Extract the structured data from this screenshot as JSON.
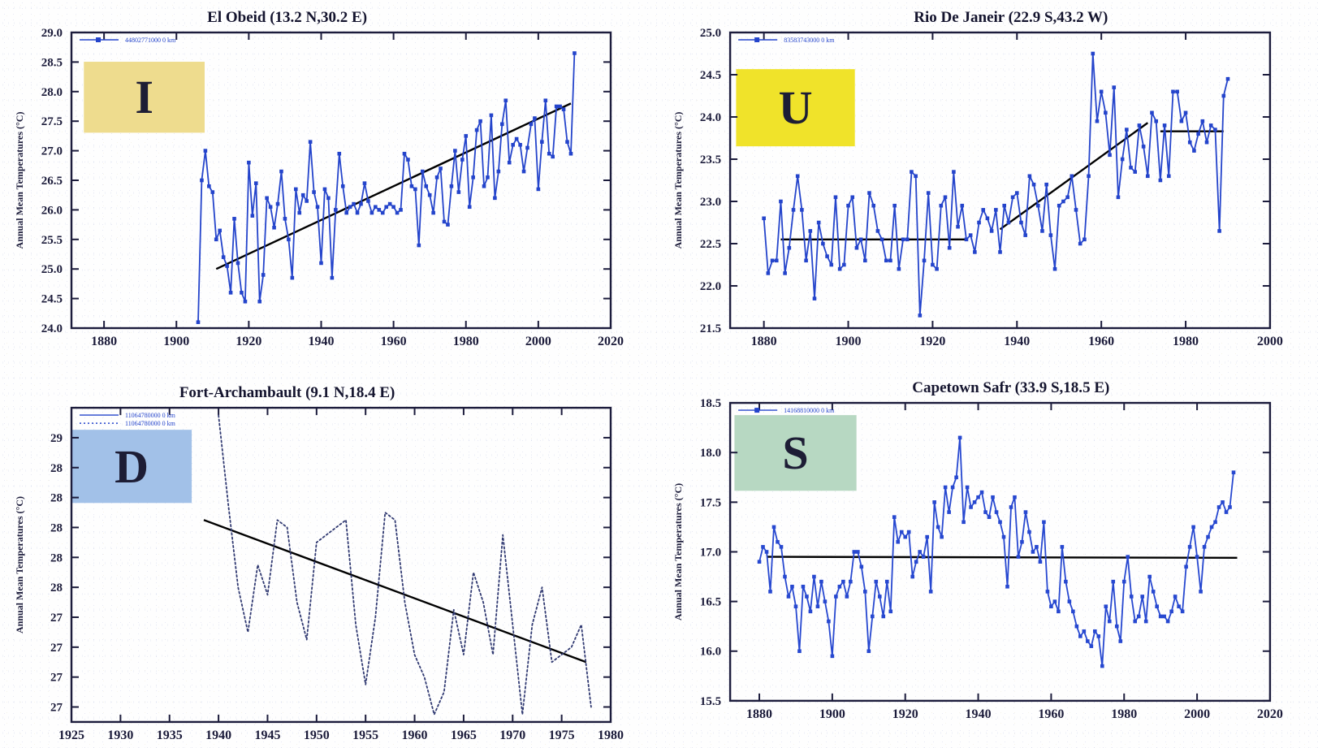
{
  "figure": {
    "description_visible_text_only": true,
    "y_axis_label": "Annual Mean Temperatures (°C)"
  },
  "chart_data": [
    {
      "type": "line",
      "title": "El Obeid (13.2 N,30.2 E)",
      "title_fx": 0.4,
      "ylabel": "Annual Mean Temperatures (°C)",
      "legend": [
        {
          "label": "44802771000  0 km",
          "dotted": false,
          "marker": true
        }
      ],
      "overlay": {
        "letter": "I",
        "color": "#eedc8e",
        "fx": 0.023,
        "fy": 0.099,
        "fw": 0.224,
        "fh": 0.24
      },
      "x_range": [
        1871,
        2020
      ],
      "y_range": [
        24.0,
        29.0
      ],
      "x_ticks": [
        1880,
        1900,
        1920,
        1940,
        1960,
        1980,
        2000,
        2020
      ],
      "y_ticks": [
        29.0,
        28.5,
        28.0,
        27.5,
        27.0,
        26.5,
        26.0,
        25.5,
        25.0,
        24.5,
        24.0
      ],
      "y_tick_labels": [
        "29.0",
        "28.5",
        "28.0",
        "27.5",
        "27.0",
        "26.5",
        "26.0",
        "25.5",
        "25.0",
        "24.5",
        "24.0"
      ],
      "series_color": "#2444cb",
      "line_style": "solid",
      "markers": true,
      "x_start": 1906,
      "values": [
        24.1,
        26.5,
        27.0,
        26.4,
        26.3,
        25.5,
        25.65,
        25.2,
        25.05,
        24.6,
        25.85,
        25.1,
        24.6,
        24.45,
        26.8,
        25.9,
        26.45,
        24.45,
        24.9,
        26.2,
        26.05,
        25.7,
        26.1,
        26.65,
        25.85,
        25.5,
        24.85,
        26.35,
        25.95,
        26.25,
        26.15,
        27.15,
        26.3,
        26.05,
        25.1,
        26.35,
        26.2,
        24.85,
        26.0,
        26.95,
        26.4,
        25.95,
        26.05,
        26.1,
        25.95,
        26.1,
        26.45,
        26.15,
        25.95,
        26.05,
        26.0,
        25.95,
        26.05,
        26.1,
        26.05,
        25.95,
        26.0,
        26.95,
        26.85,
        26.4,
        26.35,
        25.4,
        26.65,
        26.4,
        26.25,
        25.95,
        26.55,
        26.7,
        25.8,
        25.75,
        26.4,
        27.0,
        26.3,
        26.85,
        27.25,
        26.05,
        26.55,
        27.35,
        27.5,
        26.4,
        26.55,
        27.6,
        26.2,
        26.65,
        27.45,
        27.85,
        26.8,
        27.1,
        27.2,
        27.1,
        26.65,
        27.05,
        27.45,
        27.55,
        26.35,
        27.15,
        27.85,
        26.95,
        26.9,
        27.75,
        27.75,
        27.7,
        27.15,
        26.95,
        28.65
      ],
      "trend_color": "#000000",
      "trend_segments": [
        [
          1911,
          25.0,
          2009,
          27.8
        ]
      ]
    },
    {
      "type": "line",
      "title": "Rio De Janeir (22.9 S,43.2 W)",
      "title_fx": 0.52,
      "ylabel": "Annual Mean Temperatures (°C)",
      "legend": [
        {
          "label": "83583743000  0 km",
          "dotted": false,
          "marker": true
        }
      ],
      "overlay": {
        "letter": "U",
        "color": "#f0e32a",
        "fx": 0.011,
        "fy": 0.124,
        "fw": 0.22,
        "fh": 0.261
      },
      "x_range": [
        1872,
        2000
      ],
      "y_range": [
        21.5,
        25.0
      ],
      "x_ticks": [
        1880,
        1900,
        1920,
        1940,
        1960,
        1980,
        2000
      ],
      "y_ticks": [
        25.0,
        24.5,
        24.0,
        23.5,
        23.0,
        22.5,
        22.0,
        21.5
      ],
      "y_tick_labels": [
        "25.0",
        "24.5",
        "24.0",
        "23.5",
        "23.0",
        "22.5",
        "22.0",
        "21.5"
      ],
      "series_color": "#2444cb",
      "line_style": "solid",
      "markers": true,
      "x_start": 1880,
      "values": [
        22.8,
        22.15,
        22.3,
        22.3,
        23.0,
        22.15,
        22.45,
        22.9,
        23.3,
        22.9,
        22.3,
        22.65,
        21.85,
        22.75,
        22.5,
        22.35,
        22.25,
        23.05,
        22.2,
        22.25,
        22.95,
        23.05,
        22.45,
        22.55,
        22.3,
        23.1,
        22.95,
        22.65,
        22.55,
        22.3,
        22.3,
        22.95,
        22.2,
        22.55,
        22.55,
        23.35,
        23.3,
        21.65,
        22.3,
        23.1,
        22.25,
        22.2,
        22.95,
        23.05,
        22.45,
        23.35,
        22.7,
        22.95,
        22.55,
        22.6,
        22.4,
        22.75,
        22.9,
        22.8,
        22.65,
        22.9,
        22.4,
        22.95,
        22.75,
        23.05,
        23.1,
        22.75,
        22.6,
        23.3,
        23.2,
        22.95,
        22.65,
        23.2,
        22.6,
        22.2,
        22.95,
        23.0,
        23.05,
        23.3,
        22.9,
        22.5,
        22.55,
        23.3,
        24.75,
        23.95,
        24.3,
        24.05,
        23.55,
        24.35,
        23.05,
        23.5,
        23.85,
        23.4,
        23.35,
        23.9,
        23.65,
        23.3,
        24.05,
        23.95,
        23.25,
        23.9,
        23.3,
        24.3,
        24.3,
        23.95,
        24.05,
        23.7,
        23.6,
        23.8,
        23.95,
        23.7,
        23.9,
        23.85,
        22.65,
        24.25,
        24.45
      ],
      "trend_color": "#000000",
      "trend_segments": [
        [
          1884,
          22.55,
          1928,
          22.55
        ],
        [
          1936,
          22.67,
          1971,
          23.93
        ],
        [
          1974,
          23.83,
          1989,
          23.83
        ]
      ]
    },
    {
      "type": "line",
      "title": "Fort-Archambault (9.1 N,18.4 E)",
      "title_fx": 0.4,
      "ylabel": "Annual Mean Temperatures (°C)",
      "legend": [
        {
          "label": "11064780000  0 km",
          "dotted": false,
          "marker": false
        },
        {
          "label": "11064780000  0 km",
          "dotted": true,
          "marker": false
        }
      ],
      "overlay": {
        "letter": "D",
        "color": "#a2c1e8",
        "fx": 0.0,
        "fy": 0.07,
        "fw": 0.223,
        "fh": 0.233
      },
      "x_range": [
        1925,
        1980
      ],
      "y_range": [
        27.1,
        29.2
      ],
      "x_ticks": [
        1925,
        1930,
        1935,
        1940,
        1945,
        1950,
        1955,
        1960,
        1965,
        1970,
        1975,
        1980
      ],
      "y_ticks": [
        29.0,
        28.8,
        28.6,
        28.4,
        28.2,
        28.0,
        27.8,
        27.6,
        27.4,
        27.2
      ],
      "y_tick_labels": [
        "29",
        "28",
        "28",
        "28",
        "28",
        "28",
        "27",
        "27",
        "27",
        "27"
      ],
      "series_color": "#313a72",
      "line_style": "dotted",
      "markers": false,
      "x_start": 1940,
      "values": [
        29.15,
        28.55,
        28.0,
        27.7,
        28.15,
        27.95,
        28.45,
        28.4,
        27.9,
        27.65,
        28.3,
        28.35,
        28.4,
        28.45,
        27.75,
        27.35,
        27.8,
        28.5,
        28.45,
        27.9,
        27.55,
        27.4,
        27.15,
        27.3,
        27.85,
        27.55,
        28.1,
        27.9,
        27.55,
        28.35,
        27.75,
        27.15,
        27.75,
        28.0,
        27.5,
        27.55,
        27.6,
        27.75,
        27.2
      ],
      "trend_color": "#000000",
      "trend_segments": [
        [
          1938.5,
          28.45,
          1977.5,
          27.5
        ]
      ]
    },
    {
      "type": "line",
      "title": "Capetown Safr (33.9 S,18.5 E)",
      "title_fx": 0.52,
      "ylabel": "Annual Mean Temperatures (°C)",
      "legend": [
        {
          "label": "14168810000  0 km",
          "dotted": false,
          "marker": true
        }
      ],
      "overlay": {
        "letter": "S",
        "color": "#b7d8c2",
        "fx": 0.008,
        "fy": 0.041,
        "fw": 0.226,
        "fh": 0.254
      },
      "x_range": [
        1872,
        2020
      ],
      "y_range": [
        15.5,
        18.5
      ],
      "x_ticks": [
        1880,
        1900,
        1920,
        1940,
        1960,
        1980,
        2000,
        2020
      ],
      "y_ticks": [
        18.5,
        18.0,
        17.5,
        17.0,
        16.5,
        16.0,
        15.5
      ],
      "y_tick_labels": [
        "18.5",
        "18.0",
        "17.5",
        "17.0",
        "16.5",
        "16.0",
        "15.5"
      ],
      "series_color": "#2748d0",
      "line_style": "solid",
      "markers": true,
      "x_start": 1880,
      "values": [
        16.9,
        17.05,
        17.0,
        16.6,
        17.25,
        17.1,
        17.05,
        16.75,
        16.55,
        16.65,
        16.45,
        16.0,
        16.65,
        16.55,
        16.4,
        16.75,
        16.45,
        16.7,
        16.5,
        16.3,
        15.95,
        16.55,
        16.65,
        16.7,
        16.55,
        16.7,
        17.0,
        17.0,
        16.85,
        16.6,
        16.0,
        16.35,
        16.7,
        16.55,
        16.35,
        16.7,
        16.4,
        17.35,
        17.1,
        17.2,
        17.15,
        17.2,
        16.75,
        16.9,
        17.0,
        16.95,
        17.15,
        16.6,
        17.5,
        17.25,
        17.15,
        17.65,
        17.4,
        17.65,
        17.75,
        18.15,
        17.3,
        17.65,
        17.45,
        17.5,
        17.55,
        17.6,
        17.4,
        17.35,
        17.55,
        17.4,
        17.3,
        17.15,
        16.65,
        17.45,
        17.55,
        16.95,
        17.1,
        17.4,
        17.2,
        17.0,
        17.05,
        16.9,
        17.3,
        16.6,
        16.45,
        16.5,
        16.4,
        17.05,
        16.7,
        16.5,
        16.4,
        16.25,
        16.15,
        16.2,
        16.1,
        16.05,
        16.2,
        16.15,
        15.85,
        16.45,
        16.3,
        16.7,
        16.25,
        16.1,
        16.7,
        16.95,
        16.55,
        16.3,
        16.35,
        16.55,
        16.3,
        16.75,
        16.6,
        16.45,
        16.35,
        16.35,
        16.3,
        16.4,
        16.55,
        16.45,
        16.4,
        16.85,
        17.05,
        17.25,
        16.95,
        16.6,
        17.05,
        17.15,
        17.25,
        17.3,
        17.45,
        17.5,
        17.4,
        17.45,
        17.8
      ],
      "trend_color": "#000000",
      "trend_segments": [
        [
          1882,
          16.95,
          2011,
          16.94
        ]
      ]
    }
  ],
  "style_tokens": {
    "axis_color": "#1c1c3c",
    "tick_label_color": "#1b1b3a",
    "title_color": "#14142e",
    "letter_color": "#1d1d35",
    "legend_text_color": "#2444cb"
  }
}
